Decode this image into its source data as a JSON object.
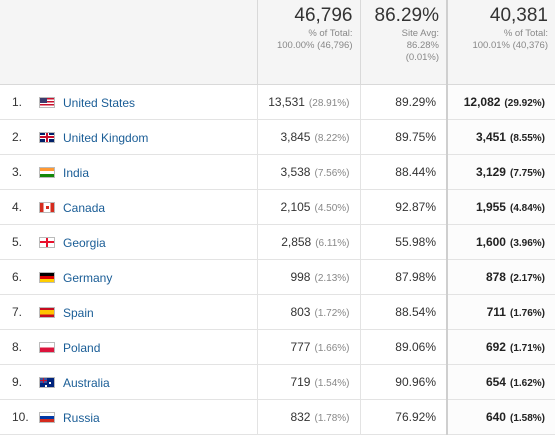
{
  "summary": {
    "sessions": {
      "value": "46,796",
      "line1": "% of Total:",
      "line2": "100.00% (46,796)"
    },
    "new_sessions": {
      "value": "86.29%",
      "line1": "Site Avg:",
      "line2": "86.28%",
      "line3": "(0.01%)"
    },
    "new_users": {
      "value": "40,381",
      "line1": "% of Total:",
      "line2": "100.01% (40,376)"
    }
  },
  "rows": [
    {
      "idx": "1.",
      "flag": "flag-us",
      "country": "United States",
      "sessions": "13,531",
      "sessions_pct": "(28.91%)",
      "new_pct": "89.29%",
      "new_users": "12,082",
      "new_users_pct": "(29.92%)"
    },
    {
      "idx": "2.",
      "flag": "flag-gb",
      "country": "United Kingdom",
      "sessions": "3,845",
      "sessions_pct": "(8.22%)",
      "new_pct": "89.75%",
      "new_users": "3,451",
      "new_users_pct": "(8.55%)"
    },
    {
      "idx": "3.",
      "flag": "flag-in",
      "country": "India",
      "sessions": "3,538",
      "sessions_pct": "(7.56%)",
      "new_pct": "88.44%",
      "new_users": "3,129",
      "new_users_pct": "(7.75%)"
    },
    {
      "idx": "4.",
      "flag": "flag-ca",
      "country": "Canada",
      "sessions": "2,105",
      "sessions_pct": "(4.50%)",
      "new_pct": "92.87%",
      "new_users": "1,955",
      "new_users_pct": "(4.84%)"
    },
    {
      "idx": "5.",
      "flag": "flag-ge",
      "country": "Georgia",
      "sessions": "2,858",
      "sessions_pct": "(6.11%)",
      "new_pct": "55.98%",
      "new_users": "1,600",
      "new_users_pct": "(3.96%)"
    },
    {
      "idx": "6.",
      "flag": "flag-de",
      "country": "Germany",
      "sessions": "998",
      "sessions_pct": "(2.13%)",
      "new_pct": "87.98%",
      "new_users": "878",
      "new_users_pct": "(2.17%)"
    },
    {
      "idx": "7.",
      "flag": "flag-es",
      "country": "Spain",
      "sessions": "803",
      "sessions_pct": "(1.72%)",
      "new_pct": "88.54%",
      "new_users": "711",
      "new_users_pct": "(1.76%)"
    },
    {
      "idx": "8.",
      "flag": "flag-pl",
      "country": "Poland",
      "sessions": "777",
      "sessions_pct": "(1.66%)",
      "new_pct": "89.06%",
      "new_users": "692",
      "new_users_pct": "(1.71%)"
    },
    {
      "idx": "9.",
      "flag": "flag-au",
      "country": "Australia",
      "sessions": "719",
      "sessions_pct": "(1.54%)",
      "new_pct": "90.96%",
      "new_users": "654",
      "new_users_pct": "(1.62%)"
    },
    {
      "idx": "10.",
      "flag": "flag-ru",
      "country": "Russia",
      "sessions": "832",
      "sessions_pct": "(1.78%)",
      "new_pct": "76.92%",
      "new_users": "640",
      "new_users_pct": "(1.58%)"
    }
  ]
}
